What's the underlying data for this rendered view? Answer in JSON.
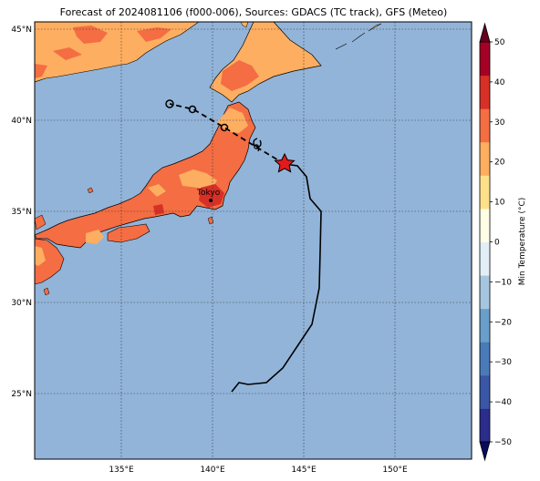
{
  "title": "Forecast of 2024081106 (f000-006), Sources: GDACS (TC track), GFS (Meteo)",
  "map": {
    "lat_ticks": [
      {
        "value": 45,
        "label": "45°N"
      },
      {
        "value": 40,
        "label": "40°N"
      },
      {
        "value": 35,
        "label": "35°N"
      },
      {
        "value": 30,
        "label": "30°N"
      },
      {
        "value": 25,
        "label": "25°N"
      }
    ],
    "lon_ticks": [
      {
        "value": 135,
        "label": "135°E"
      },
      {
        "value": 140,
        "label": "140°E"
      },
      {
        "value": 145,
        "label": "145°E"
      },
      {
        "value": 150,
        "label": "150°E"
      }
    ],
    "city_label": "Tokyo",
    "colors": {
      "ocean": "#92b4d9",
      "land_warm": "#f46d43",
      "land_mild": "#fdae61",
      "land_hot": "#d73027",
      "track": "#000000",
      "star": "#e31a1c"
    }
  },
  "colorbar": {
    "label": "Min Temperature (°C)",
    "ticks": [
      "50",
      "40",
      "30",
      "20",
      "10",
      "0",
      "−10",
      "−20",
      "−30",
      "−40",
      "−50"
    ],
    "bands": [
      "#2c2c8c",
      "#3a56a6",
      "#4a7ab8",
      "#6a9fcb",
      "#a6c6e0",
      "#e2eef6",
      "#fefee6",
      "#fee08b",
      "#fdae61",
      "#f46d43",
      "#d73027",
      "#a50026"
    ]
  }
}
